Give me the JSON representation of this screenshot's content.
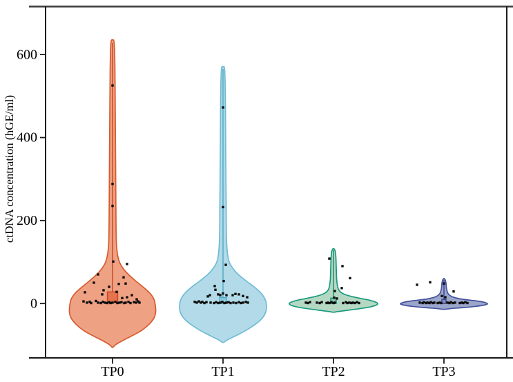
{
  "chart_data": {
    "type": "violin",
    "title": "",
    "xlabel": "",
    "ylabel": "ctDNA concentration (hGE/ml)",
    "categories": [
      "TP0",
      "TP1",
      "TP2",
      "TP3"
    ],
    "yticks": [
      0,
      200,
      400,
      600
    ],
    "ytick_labels": [
      "0",
      "200",
      "400",
      "600"
    ],
    "ylim": [
      -131,
      716
    ],
    "grid": false,
    "legend": "none",
    "axis_color": "#1c1c1c",
    "point_color": "#0d0d0d",
    "groups": [
      {
        "label": "TP0",
        "fill": "#efa183",
        "stroke": "#d65b2f",
        "box": {
          "low": 3,
          "high": 28,
          "halfwidth": 7.5,
          "whisker_high": 628,
          "fill": "#e5734e",
          "stroke": "#c4461f"
        },
        "points": [
          [
            525,
            0
          ],
          [
            288,
            0
          ],
          [
            235,
            0
          ],
          [
            101,
            1
          ],
          [
            95,
            21
          ],
          [
            70,
            -21
          ],
          [
            63,
            16
          ],
          [
            50,
            -27
          ],
          [
            48,
            19
          ],
          [
            47,
            9
          ],
          [
            40,
            -5
          ],
          [
            32,
            -13
          ],
          [
            28,
            6
          ],
          [
            27,
            -40
          ],
          [
            22,
            -15
          ],
          [
            20,
            28
          ],
          [
            15,
            21
          ],
          [
            13,
            14
          ],
          [
            10,
            35
          ],
          [
            5,
            -42
          ],
          [
            2,
            -37
          ],
          [
            4,
            -33
          ],
          [
            1,
            -31
          ],
          [
            6,
            -24
          ],
          [
            2,
            -21
          ],
          [
            1,
            -17
          ],
          [
            4,
            -14
          ],
          [
            2,
            -11
          ],
          [
            1,
            -8
          ],
          [
            3,
            -5
          ],
          [
            1,
            -3
          ],
          [
            2,
            0
          ],
          [
            4,
            4
          ],
          [
            1,
            7
          ],
          [
            2,
            10
          ],
          [
            3,
            13
          ],
          [
            1,
            17
          ],
          [
            2,
            19
          ],
          [
            4,
            23
          ],
          [
            1,
            26
          ],
          [
            3,
            31
          ],
          [
            2,
            34
          ],
          [
            5,
            37
          ],
          [
            2,
            39
          ]
        ],
        "violin_profile": [
          [
            635,
            0
          ],
          [
            625,
            2.5
          ],
          [
            560,
            3.5
          ],
          [
            450,
            4
          ],
          [
            330,
            4.5
          ],
          [
            200,
            5
          ],
          [
            150,
            5.5
          ],
          [
            120,
            7
          ],
          [
            100,
            10
          ],
          [
            85,
            15
          ],
          [
            70,
            23
          ],
          [
            55,
            33
          ],
          [
            40,
            44
          ],
          [
            25,
            54
          ],
          [
            10,
            60
          ],
          [
            -5,
            62
          ],
          [
            -20,
            62.5
          ],
          [
            -35,
            60
          ],
          [
            -50,
            53
          ],
          [
            -65,
            42
          ],
          [
            -78,
            28
          ],
          [
            -90,
            14
          ],
          [
            -100,
            4
          ],
          [
            -106,
            0
          ]
        ]
      },
      {
        "label": "TP1",
        "fill": "#b3dae8",
        "stroke": "#6fbcd4",
        "box": {
          "low": 0,
          "high": 14,
          "halfwidth": 5,
          "whisker_high": 565,
          "fill": "#8ecddf",
          "stroke": "#4fa8c4"
        },
        "points": [
          [
            472,
            0
          ],
          [
            232,
            0
          ],
          [
            93,
            4
          ],
          [
            54,
            1
          ],
          [
            42,
            -12
          ],
          [
            33,
            -11
          ],
          [
            24,
            0
          ],
          [
            23,
            18
          ],
          [
            22,
            -7
          ],
          [
            22,
            23
          ],
          [
            20,
            -19
          ],
          [
            20,
            -4
          ],
          [
            20,
            5
          ],
          [
            20,
            14
          ],
          [
            18,
            29
          ],
          [
            17,
            -22
          ],
          [
            15,
            35
          ],
          [
            4,
            -41
          ],
          [
            2,
            -38
          ],
          [
            5,
            -35
          ],
          [
            2,
            -32
          ],
          [
            4,
            -30
          ],
          [
            1,
            -27
          ],
          [
            3,
            -24
          ],
          [
            2,
            -18
          ],
          [
            1,
            -13
          ],
          [
            3,
            -10
          ],
          [
            1,
            -7
          ],
          [
            2,
            -4
          ],
          [
            4,
            -1
          ],
          [
            1,
            2
          ],
          [
            2,
            5
          ],
          [
            3,
            8
          ],
          [
            1,
            11
          ],
          [
            2,
            15
          ],
          [
            1,
            19
          ],
          [
            3,
            23
          ],
          [
            1,
            26
          ],
          [
            2,
            29
          ],
          [
            4,
            33
          ],
          [
            2,
            36
          ]
        ],
        "violin_profile": [
          [
            570,
            0
          ],
          [
            560,
            2.5
          ],
          [
            480,
            3.5
          ],
          [
            350,
            4
          ],
          [
            250,
            4.5
          ],
          [
            160,
            5
          ],
          [
            120,
            6.5
          ],
          [
            100,
            9
          ],
          [
            85,
            14
          ],
          [
            70,
            22
          ],
          [
            55,
            33
          ],
          [
            40,
            45
          ],
          [
            25,
            55
          ],
          [
            10,
            61
          ],
          [
            -5,
            63
          ],
          [
            -20,
            62
          ],
          [
            -35,
            57
          ],
          [
            -50,
            47
          ],
          [
            -65,
            33
          ],
          [
            -78,
            18
          ],
          [
            -88,
            6
          ],
          [
            -94,
            0
          ]
        ]
      },
      {
        "label": "TP2",
        "fill": "#b5d8c3",
        "stroke": "#18997e",
        "box": {
          "low": 0,
          "high": 13,
          "halfwidth": 4,
          "whisker_high": 128,
          "fill": "#8cc3a8",
          "stroke": "#128a72"
        },
        "points": [
          [
            108,
            -6
          ],
          [
            90,
            13
          ],
          [
            61,
            24
          ],
          [
            37,
            12
          ],
          [
            30,
            2
          ],
          [
            14,
            1
          ],
          [
            12,
            5
          ],
          [
            2,
            -40
          ],
          [
            1,
            -37
          ],
          [
            3,
            -34
          ],
          [
            2,
            -24
          ],
          [
            1,
            -20
          ],
          [
            3,
            -17
          ],
          [
            1,
            -10
          ],
          [
            2,
            -8
          ],
          [
            1,
            -6
          ],
          [
            3,
            -3
          ],
          [
            1,
            0
          ],
          [
            2,
            2
          ],
          [
            1,
            14
          ],
          [
            3,
            18
          ],
          [
            1,
            20
          ],
          [
            2,
            23
          ],
          [
            1,
            26
          ],
          [
            2,
            28
          ],
          [
            1,
            31
          ],
          [
            3,
            34
          ],
          [
            1,
            37
          ]
        ],
        "violin_profile": [
          [
            132,
            0
          ],
          [
            126,
            2.5
          ],
          [
            110,
            3.5
          ],
          [
            85,
            4
          ],
          [
            60,
            4.5
          ],
          [
            45,
            5.5
          ],
          [
            35,
            7
          ],
          [
            28,
            10
          ],
          [
            22,
            16
          ],
          [
            17,
            26
          ],
          [
            12,
            40
          ],
          [
            8,
            52
          ],
          [
            4,
            60
          ],
          [
            0,
            64
          ],
          [
            -4,
            62
          ],
          [
            -8,
            54
          ],
          [
            -12,
            40
          ],
          [
            -16,
            22
          ],
          [
            -19,
            8
          ],
          [
            -21,
            0
          ]
        ]
      },
      {
        "label": "TP3",
        "fill": "#9ba6cb",
        "stroke": "#44519f",
        "box": {
          "low": 0,
          "high": 10,
          "halfwidth": 3,
          "whisker_high": 57,
          "fill": "#7f8cba",
          "stroke": "#36418c"
        },
        "points": [
          [
            51,
            -20
          ],
          [
            48,
            0
          ],
          [
            45,
            -39
          ],
          [
            29,
            14
          ],
          [
            18,
            -3
          ],
          [
            15,
            2
          ],
          [
            2,
            -35
          ],
          [
            1,
            -31
          ],
          [
            3,
            -29
          ],
          [
            1,
            -26
          ],
          [
            2,
            -24
          ],
          [
            1,
            -21
          ],
          [
            3,
            -19
          ],
          [
            1,
            -16
          ],
          [
            2,
            -14
          ],
          [
            1,
            -9
          ],
          [
            2,
            -6
          ],
          [
            1,
            -4
          ],
          [
            2,
            5
          ],
          [
            1,
            8
          ],
          [
            3,
            10
          ],
          [
            1,
            13
          ],
          [
            2,
            16
          ],
          [
            1,
            23
          ],
          [
            2,
            26
          ],
          [
            1,
            28
          ],
          [
            3,
            31
          ],
          [
            1,
            34
          ]
        ],
        "violin_profile": [
          [
            60,
            0
          ],
          [
            56,
            2
          ],
          [
            48,
            3
          ],
          [
            38,
            3.5
          ],
          [
            30,
            4.5
          ],
          [
            24,
            6
          ],
          [
            19,
            9
          ],
          [
            15,
            14
          ],
          [
            11,
            24
          ],
          [
            8,
            38
          ],
          [
            5,
            52
          ],
          [
            2,
            60
          ],
          [
            -1,
            63
          ],
          [
            -4,
            58
          ],
          [
            -7,
            46
          ],
          [
            -10,
            28
          ],
          [
            -12,
            12
          ],
          [
            -14,
            0
          ]
        ]
      }
    ]
  }
}
